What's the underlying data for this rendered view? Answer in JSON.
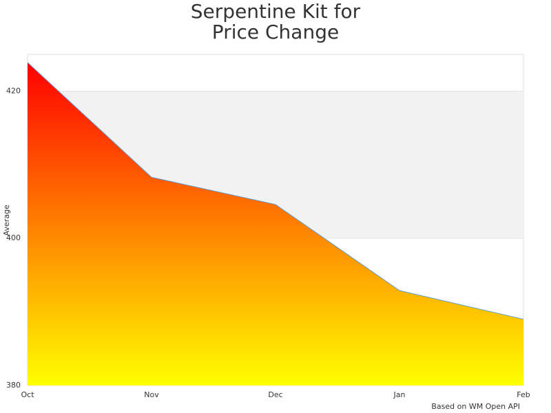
{
  "chart_data": {
    "type": "area",
    "title": [
      "Serpentine Kit for",
      "Price Change"
    ],
    "y_label": "Average",
    "credits": "Based on WM Open API",
    "categories": [
      "Oct",
      "Nov",
      "Dec",
      "Jan",
      "Feb"
    ],
    "values": [
      423.9,
      408.3,
      404.6,
      392.9,
      389.0
    ],
    "line_color": "#5b9bd5",
    "gradient": [
      "#ff0000",
      "#ffff00"
    ],
    "band_color": "#f2f2f2",
    "ylim": [
      380,
      425
    ],
    "yticks": [
      380,
      400,
      420
    ]
  }
}
